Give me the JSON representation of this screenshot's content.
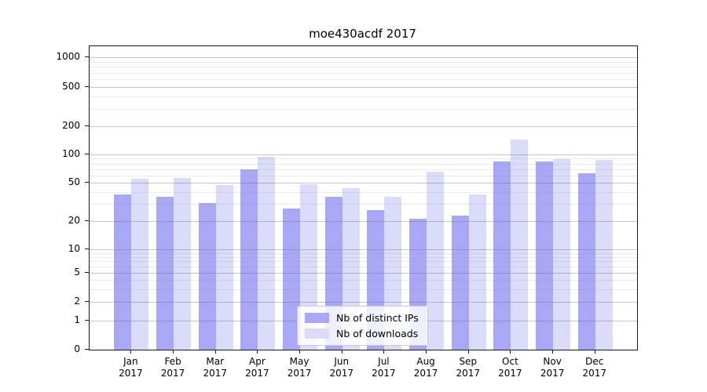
{
  "title": "moe430acdf 2017",
  "colors": {
    "distinct_ips": "#a8a8f7",
    "downloads": "#dbdbfa",
    "spine": "#1a1a1a",
    "major_grid": "#c6c6c6",
    "minor_grid": "#e8e8e8",
    "background": "#ffffff",
    "text": "#000000"
  },
  "chart_data": {
    "type": "bar",
    "title": "moe430acdf 2017",
    "categories": [
      "Jan 2017",
      "Feb 2017",
      "Mar 2017",
      "Apr 2017",
      "May 2017",
      "Jun 2017",
      "Jul 2017",
      "Aug 2017",
      "Sep 2017",
      "Oct 2017",
      "Nov 2017",
      "Dec 2017"
    ],
    "series": [
      {
        "name": "Nb of distinct IPs",
        "values": [
          38,
          36,
          31,
          70,
          27,
          36,
          26,
          21,
          23,
          84,
          84,
          63
        ]
      },
      {
        "name": "Nb of downloads",
        "values": [
          55,
          56,
          47,
          94,
          48,
          44,
          36,
          65,
          38,
          145,
          89,
          87
        ]
      }
    ],
    "xlabel": "",
    "ylabel": "",
    "yscale": "symlog",
    "y_ticks": [
      0,
      1,
      2,
      5,
      10,
      20,
      50,
      100,
      200,
      500,
      1000
    ],
    "ylim": [
      0,
      1300
    ],
    "grid": "both",
    "legend_position": "lower center"
  }
}
